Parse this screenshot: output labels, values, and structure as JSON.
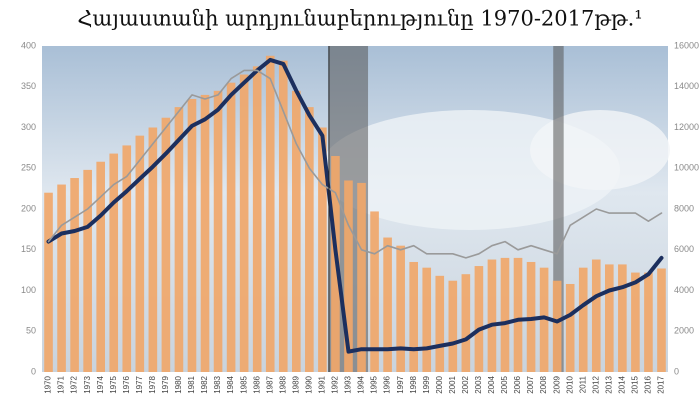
{
  "chart_data": {
    "type": "bar_line",
    "title": "Հայաստանի արդյունաբերությունը 1970-2017թթ.¹",
    "categories": [
      "1970",
      "1971",
      "1972",
      "1973",
      "1974",
      "1975",
      "1976",
      "1977",
      "1978",
      "1979",
      "1980",
      "1981",
      "1982",
      "1983",
      "1984",
      "1985",
      "1986",
      "1987",
      "1988",
      "1989",
      "1990",
      "1991",
      "1992",
      "1993",
      "1994",
      "1995",
      "1996",
      "1997",
      "1998",
      "1999",
      "2000",
      "2001",
      "2002",
      "2003",
      "2004",
      "2005",
      "2006",
      "2007",
      "2008",
      "2009",
      "2010",
      "2011",
      "2012",
      "2013",
      "2014",
      "2015",
      "2016",
      "2017"
    ],
    "series": [
      {
        "type": "bar",
        "color": "#f0a76a",
        "values": [
          220,
          230,
          238,
          248,
          258,
          268,
          278,
          290,
          300,
          312,
          325,
          335,
          340,
          345,
          355,
          365,
          375,
          388,
          382,
          345,
          325,
          300,
          265,
          235,
          232,
          197,
          165,
          155,
          135,
          128,
          118,
          112,
          120,
          130,
          138,
          140,
          140,
          135,
          128,
          112,
          108,
          128,
          138,
          132,
          132,
          122,
          122,
          127
        ]
      },
      {
        "type": "line",
        "color": "#1c2f5e",
        "values": [
          160,
          170,
          173,
          178,
          192,
          208,
          222,
          237,
          252,
          268,
          285,
          302,
          310,
          322,
          340,
          355,
          370,
          383,
          378,
          345,
          315,
          290,
          150,
          25,
          28,
          28,
          28,
          29,
          28,
          29,
          32,
          35,
          40,
          52,
          58,
          60,
          64,
          65,
          67,
          62,
          70,
          82,
          93,
          100,
          104,
          110,
          120,
          140
        ]
      },
      {
        "type": "line",
        "color": "#9a9a9a",
        "axis": "y2",
        "values": [
          6400,
          7200,
          7600,
          8000,
          8600,
          9200,
          9600,
          10400,
          11200,
          12000,
          12800,
          13600,
          13400,
          13600,
          14400,
          14800,
          14800,
          14400,
          12800,
          11200,
          10000,
          9200,
          8800,
          7200,
          6000,
          5800,
          6200,
          6000,
          6200,
          5800,
          5800,
          5800,
          5600,
          5800,
          6200,
          6400,
          6000,
          6200,
          6000,
          5800,
          7200,
          7600,
          8000,
          7800,
          7800,
          7800,
          7400,
          7800
        ]
      }
    ],
    "ylim": [
      0,
      400
    ],
    "yticks": [
      0,
      50,
      100,
      150,
      200,
      250,
      300,
      350,
      400
    ],
    "y2lim": [
      0,
      16000
    ],
    "y2ticks": [
      0,
      2000,
      4000,
      6000,
      8000,
      10000,
      12000,
      14000,
      16000
    ]
  }
}
